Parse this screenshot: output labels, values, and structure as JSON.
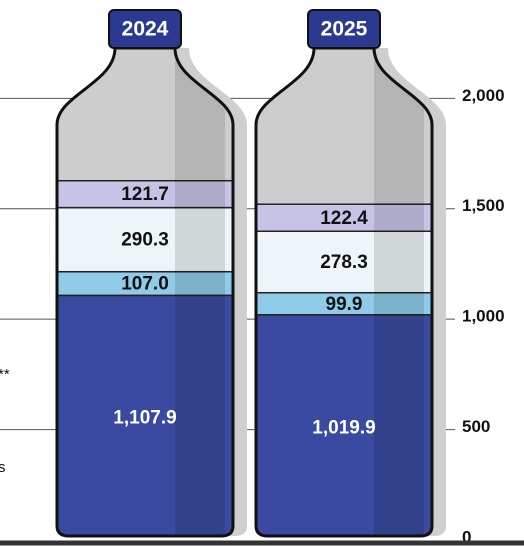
{
  "chart_data": {
    "type": "bottle-stack",
    "categories": [
      "2024",
      "2025"
    ],
    "series": [
      {
        "color": "#3a4aa0",
        "values": [
          1107.9,
          1019.9
        ],
        "value_labels": [
          "1,107.9",
          "1,019.9"
        ],
        "label_color": "#ffffff"
      },
      {
        "color": "#8fcbe8",
        "values": [
          107.0,
          99.9
        ],
        "value_labels": [
          "107.0",
          "99.9"
        ],
        "label_color": "#111111"
      },
      {
        "color": "#eef5f8",
        "values": [
          290.3,
          278.3
        ],
        "label_color": "#111111"
      },
      {
        "color": "#c6c4e6",
        "values": [
          121.7,
          122.4
        ],
        "label_color": "#111111"
      }
    ],
    "ylim": [
      0,
      2400
    ],
    "yticks": [
      0,
      500,
      {
        "value": 1000,
        "label": "1,000"
      },
      {
        "value": 1500,
        "label": "1,500"
      },
      {
        "value": 2000,
        "label": "2,000"
      }
    ],
    "grid": true,
    "side_labels": [
      "**",
      "s"
    ]
  }
}
